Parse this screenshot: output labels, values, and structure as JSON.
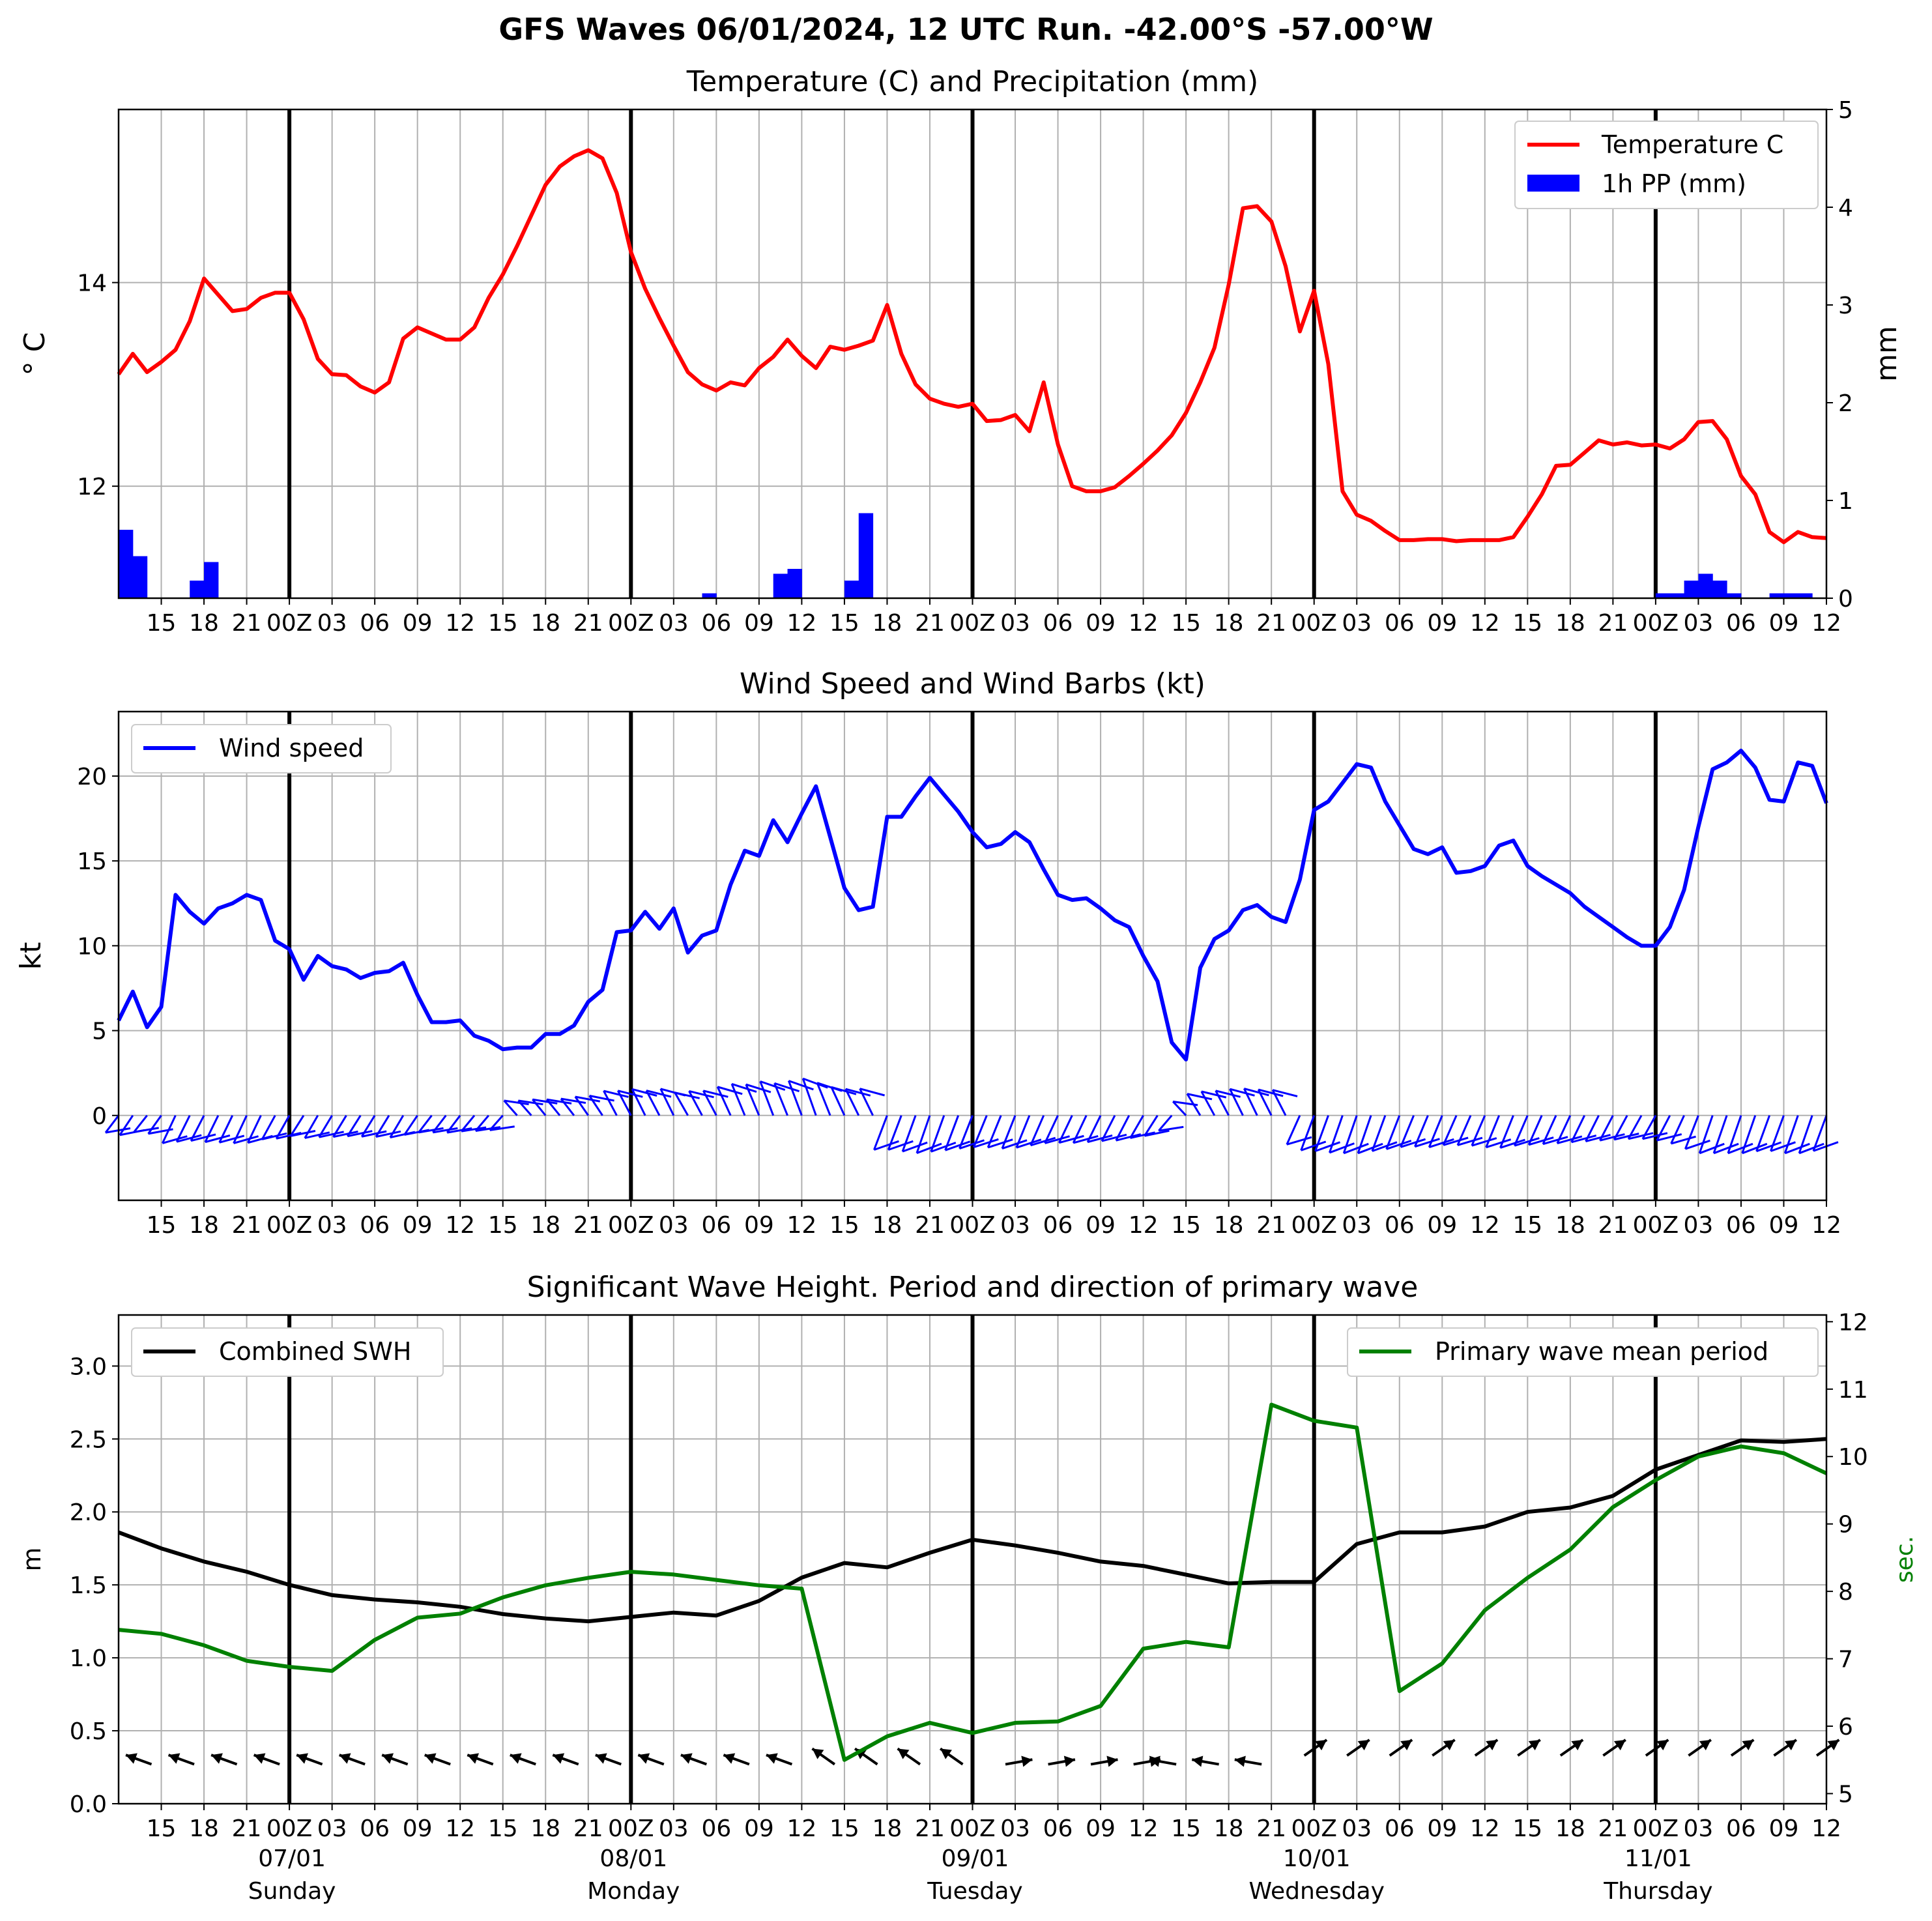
{
  "title": "GFS Waves 06/01/2024, 12 UTC Run. -42.00°S -57.00°W",
  "colors": {
    "temperature": "#ff0000",
    "precip": "#0000ff",
    "wind": "#0000ff",
    "swh": "#000000",
    "period": "#008000",
    "grid": "#b0b0b0",
    "daybreak": "#000000"
  },
  "x_axis": {
    "tick_labels": [
      "15",
      "18",
      "21",
      "00Z",
      "03",
      "06",
      "09",
      "12",
      "15",
      "18",
      "21",
      "00Z",
      "03",
      "06",
      "09",
      "12",
      "15",
      "18",
      "21",
      "00Z",
      "03",
      "06",
      "09",
      "12",
      "15",
      "18",
      "21",
      "00Z",
      "03",
      "06",
      "09",
      "12",
      "15",
      "18",
      "21",
      "00Z",
      "03",
      "06",
      "09",
      "12"
    ],
    "date_labels": [
      "07/01",
      "08/01",
      "09/01",
      "10/01",
      "11/01"
    ],
    "day_labels": [
      "Sunday",
      "Monday",
      "Tuesday",
      "Wednesday",
      "Thursday"
    ]
  },
  "chart_data": [
    {
      "type": "line",
      "title": "Temperature (C) and Precipitation (mm)",
      "ylabel": "$^\\circ$C",
      "ylabel_display": "° C",
      "y2label": "mm",
      "x_unit": "hours since 2024-01-06 12 UTC",
      "xlim": [
        0,
        120
      ],
      "ylim": [
        10.9,
        15.7
      ],
      "y_ticks": [
        "12",
        "14"
      ],
      "y2lim": [
        0,
        5
      ],
      "y2_ticks": [
        "0",
        "1",
        "2",
        "3",
        "4",
        "5"
      ],
      "legend": {
        "placement": "top-right",
        "entries": [
          "Temperature C",
          "1h PP (mm)"
        ]
      },
      "series": [
        {
          "name": "Temperature C",
          "x": [
            0,
            1,
            2,
            3,
            4,
            5,
            6,
            7,
            8,
            9,
            10,
            11,
            12,
            13,
            14,
            15,
            16,
            17,
            18,
            19,
            20,
            21,
            22,
            23,
            24,
            25,
            26,
            27,
            28,
            29,
            30,
            31,
            32,
            33,
            34,
            35,
            36,
            37,
            38,
            39,
            40,
            41,
            42,
            43,
            44,
            45,
            46,
            47,
            48,
            49,
            50,
            51,
            52,
            53,
            54,
            55,
            56,
            57,
            58,
            59,
            60,
            61,
            62,
            63,
            64,
            65,
            66,
            67,
            68,
            69,
            70,
            71,
            72,
            73,
            74,
            75,
            76,
            77,
            78,
            79,
            80,
            81,
            82,
            83,
            84,
            85,
            86,
            87,
            88,
            89,
            90,
            91,
            92,
            93,
            94,
            95,
            96,
            97,
            98,
            99,
            100,
            101,
            102,
            103,
            104,
            105,
            106,
            107,
            108,
            109,
            110,
            111,
            112,
            113,
            114,
            115,
            116,
            117,
            118,
            119,
            120
          ],
          "values": [
            13.1,
            13.3,
            13.12,
            13.22,
            13.34,
            13.62,
            14.04,
            13.88,
            13.72,
            13.74,
            13.85,
            13.9,
            13.9,
            13.64,
            13.25,
            13.1,
            13.09,
            12.98,
            12.92,
            13.02,
            13.45,
            13.56,
            13.5,
            13.44,
            13.44,
            13.56,
            13.85,
            14.08,
            14.36,
            14.66,
            14.96,
            15.14,
            15.24,
            15.3,
            15.22,
            14.88,
            14.3,
            13.94,
            13.65,
            13.38,
            13.12,
            13.0,
            12.94,
            13.02,
            12.99,
            13.16,
            13.27,
            13.44,
            13.28,
            13.16,
            13.37,
            13.34,
            13.38,
            13.43,
            13.78,
            13.3,
            13.0,
            12.86,
            12.81,
            12.78,
            12.81,
            12.64,
            12.65,
            12.7,
            12.54,
            13.02,
            12.41,
            12.0,
            11.95,
            11.95,
            11.99,
            12.1,
            12.22,
            12.35,
            12.5,
            12.72,
            13.02,
            13.36,
            13.98,
            14.73,
            14.75,
            14.6,
            14.16,
            13.52,
            13.92,
            13.2,
            11.95,
            11.72,
            11.66,
            11.56,
            11.47,
            11.47,
            11.48,
            11.48,
            11.46,
            11.47,
            11.47,
            11.47,
            11.5,
            11.7,
            11.92,
            12.2,
            12.21,
            12.33,
            12.45,
            12.41,
            12.43,
            12.4,
            12.41,
            12.37,
            12.46,
            12.63,
            12.64,
            12.46,
            12.1,
            11.92,
            11.55,
            11.45,
            11.55,
            11.5,
            11.49
          ]
        },
        {
          "name": "1h PP (mm)",
          "type": "bar",
          "x": [
            0,
            1,
            5,
            6,
            41,
            46,
            47,
            51,
            52,
            108,
            109,
            110,
            111,
            112,
            113,
            114,
            116,
            117,
            118,
            119
          ],
          "values": [
            0.7,
            0.43,
            0.18,
            0.37,
            0.05,
            0.25,
            0.3,
            0.18,
            0.87,
            0.05,
            0.05,
            0.18,
            0.25,
            0.18,
            0.05,
            0.0,
            0.05,
            0.05,
            0.05,
            0.0
          ]
        }
      ]
    },
    {
      "type": "line",
      "title": "Wind Speed and Wind Barbs (kt)",
      "ylabel": "kt",
      "x_unit": "hours since 2024-01-06 12 UTC",
      "xlim": [
        0,
        120
      ],
      "ylim": [
        -5,
        23.8
      ],
      "y_ticks": [
        "0",
        "5",
        "10",
        "15",
        "20"
      ],
      "legend": {
        "placement": "top-left",
        "entries": [
          "Wind speed"
        ]
      },
      "series": [
        {
          "name": "Wind speed",
          "x": [
            0,
            1,
            2,
            3,
            4,
            5,
            6,
            7,
            8,
            9,
            10,
            11,
            12,
            13,
            14,
            15,
            16,
            17,
            18,
            19,
            20,
            21,
            22,
            23,
            24,
            25,
            26,
            27,
            28,
            29,
            30,
            31,
            32,
            33,
            34,
            35,
            36,
            37,
            38,
            39,
            40,
            41,
            42,
            43,
            44,
            45,
            46,
            47,
            48,
            49,
            50,
            51,
            52,
            53,
            54,
            55,
            56,
            57,
            58,
            59,
            60,
            61,
            62,
            63,
            64,
            65,
            66,
            67,
            68,
            69,
            70,
            71,
            72,
            73,
            74,
            75,
            76,
            77,
            78,
            79,
            80,
            81,
            82,
            83,
            84,
            85,
            86,
            87,
            88,
            89,
            90,
            91,
            92,
            93,
            94,
            95,
            96,
            97,
            98,
            99,
            100,
            101,
            102,
            103,
            104,
            105,
            106,
            107,
            108,
            109,
            110,
            111,
            112,
            113,
            114,
            115,
            116,
            117,
            118,
            119,
            120
          ],
          "values": [
            5.6,
            7.3,
            5.2,
            6.4,
            13.0,
            12.0,
            11.3,
            12.2,
            12.5,
            13.0,
            12.7,
            10.3,
            9.8,
            8.0,
            9.4,
            8.8,
            8.6,
            8.1,
            8.4,
            8.5,
            9.0,
            7.1,
            5.5,
            5.5,
            5.6,
            4.7,
            4.4,
            3.9,
            4.0,
            4.0,
            4.8,
            4.8,
            5.3,
            6.7,
            7.4,
            10.8,
            10.9,
            12.0,
            11.0,
            12.2,
            9.6,
            10.6,
            10.9,
            13.6,
            15.6,
            15.3,
            17.4,
            16.1,
            17.8,
            19.4,
            16.4,
            13.4,
            12.1,
            12.3,
            17.6,
            17.6,
            18.8,
            19.9,
            18.9,
            17.9,
            16.7,
            15.8,
            16.0,
            16.7,
            16.1,
            14.5,
            13.0,
            12.7,
            12.8,
            12.2,
            11.5,
            11.1,
            9.4,
            7.9,
            4.3,
            3.3,
            8.7,
            10.4,
            10.9,
            12.1,
            12.4,
            11.7,
            11.4,
            13.9,
            18.0,
            18.5,
            19.6,
            20.7,
            20.5,
            18.5,
            17.1,
            15.7,
            15.4,
            15.8,
            14.3,
            14.4,
            14.7,
            15.9,
            16.2,
            14.7,
            14.1,
            13.6,
            13.1,
            12.3,
            11.7,
            11.1,
            10.5,
            10.0,
            10.0,
            11.1,
            13.3,
            17.0,
            20.4,
            20.8,
            21.5,
            20.5,
            18.6,
            18.5,
            20.8,
            20.6,
            18.4
          ]
        }
      ]
    },
    {
      "type": "line",
      "title": "Significant Wave Height. Period and direction of primary wave",
      "ylabel": "m",
      "y2label": "sec.",
      "x_unit": "hours since 2024-01-06 12 UTC",
      "xlim": [
        0,
        120
      ],
      "ylim": [
        0,
        3.35
      ],
      "y_ticks": [
        "0.0",
        "0.5",
        "1.0",
        "1.5",
        "2.0",
        "2.5",
        "3.0"
      ],
      "y2lim": [
        4.85,
        12.1
      ],
      "y2_ticks": [
        "5",
        "6",
        "7",
        "8",
        "9",
        "10",
        "11",
        "12"
      ],
      "legend": [
        {
          "placement": "top-left",
          "entries": [
            "Combined SWH"
          ]
        },
        {
          "placement": "top-right",
          "entries": [
            "Primary wave mean period"
          ]
        }
      ],
      "series": [
        {
          "name": "Combined SWH",
          "x": [
            0,
            3,
            6,
            9,
            12,
            15,
            18,
            21,
            24,
            27,
            30,
            33,
            36,
            39,
            42,
            45,
            48,
            51,
            54,
            57,
            60,
            63,
            66,
            69,
            72,
            75,
            78,
            81,
            84,
            87,
            90,
            93,
            96,
            99,
            102,
            105,
            108,
            111,
            114,
            117,
            120
          ],
          "values": [
            1.86,
            1.75,
            1.66,
            1.59,
            1.5,
            1.43,
            1.4,
            1.38,
            1.35,
            1.3,
            1.27,
            1.25,
            1.28,
            1.31,
            1.29,
            1.39,
            1.55,
            1.65,
            1.62,
            1.72,
            1.81,
            1.77,
            1.72,
            1.66,
            1.63,
            1.57,
            1.51,
            1.52,
            1.52,
            1.78,
            1.86,
            1.86,
            1.9,
            2.0,
            2.03,
            2.11,
            2.29,
            2.39,
            2.49,
            2.48,
            2.5
          ]
        },
        {
          "name": "Primary wave mean period",
          "axis": "right",
          "x": [
            0,
            3,
            6,
            9,
            12,
            15,
            18,
            21,
            24,
            27,
            30,
            33,
            36,
            39,
            42,
            45,
            48,
            51,
            54,
            57,
            60,
            63,
            66,
            69,
            72,
            75,
            78,
            81,
            84,
            87,
            90,
            93,
            96,
            99,
            102,
            105,
            108,
            111,
            114,
            117,
            120
          ],
          "values": [
            7.43,
            7.37,
            7.2,
            6.97,
            6.88,
            6.82,
            7.28,
            7.61,
            7.67,
            7.91,
            8.09,
            8.2,
            8.29,
            8.25,
            8.17,
            8.09,
            8.04,
            5.5,
            5.85,
            6.05,
            5.9,
            6.05,
            6.07,
            6.3,
            7.15,
            7.25,
            7.17,
            10.77,
            10.53,
            10.43,
            6.52,
            6.93,
            7.72,
            8.2,
            8.62,
            9.25,
            9.65,
            10.0,
            10.15,
            10.05,
            9.75
          ]
        }
      ]
    }
  ]
}
